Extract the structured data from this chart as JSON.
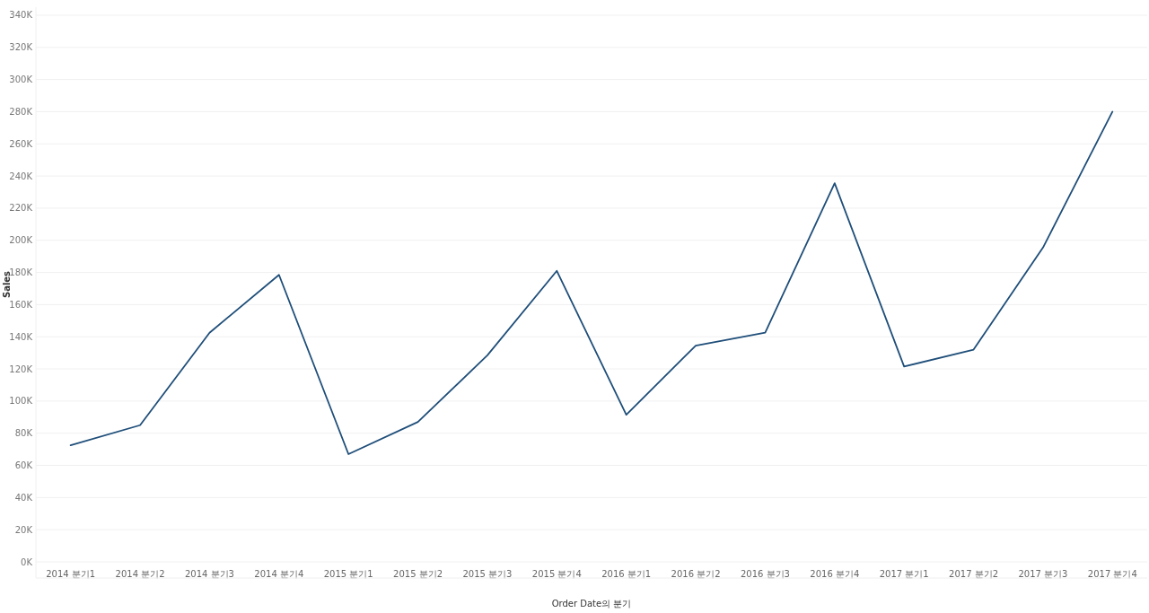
{
  "chart_data": {
    "type": "line",
    "xlabel": "Order Date의 분기",
    "ylabel": "Sales",
    "categories": [
      "2014 분기1",
      "2014 분기2",
      "2014 분기3",
      "2014 분기4",
      "2015 분기1",
      "2015 분기2",
      "2015 분기3",
      "2015 분기4",
      "2016 분기1",
      "2016 분기2",
      "2016 분기3",
      "2016 분기4",
      "2017 분기1",
      "2017 분기2",
      "2017 분기3",
      "2017 분기4"
    ],
    "values": [
      72500,
      85000,
      142500,
      178500,
      67000,
      87000,
      128500,
      181000,
      91500,
      134500,
      142500,
      235500,
      121500,
      132000,
      195500,
      280000
    ],
    "color": "#1f4e79",
    "ylim": [
      0,
      345000
    ],
    "yticks": [
      {
        "value": 0,
        "label": "0K"
      },
      {
        "value": 20000,
        "label": "20K"
      },
      {
        "value": 40000,
        "label": "40K"
      },
      {
        "value": 60000,
        "label": "60K"
      },
      {
        "value": 80000,
        "label": "80K"
      },
      {
        "value": 100000,
        "label": "100K"
      },
      {
        "value": 120000,
        "label": "120K"
      },
      {
        "value": 140000,
        "label": "140K"
      },
      {
        "value": 160000,
        "label": "160K"
      },
      {
        "value": 180000,
        "label": "180K"
      },
      {
        "value": 200000,
        "label": "200K"
      },
      {
        "value": 220000,
        "label": "220K"
      },
      {
        "value": 240000,
        "label": "240K"
      },
      {
        "value": 260000,
        "label": "260K"
      },
      {
        "value": 280000,
        "label": "280K"
      },
      {
        "value": 300000,
        "label": "300K"
      },
      {
        "value": 320000,
        "label": "320K"
      },
      {
        "value": 340000,
        "label": "340K"
      }
    ],
    "grid": "y"
  }
}
